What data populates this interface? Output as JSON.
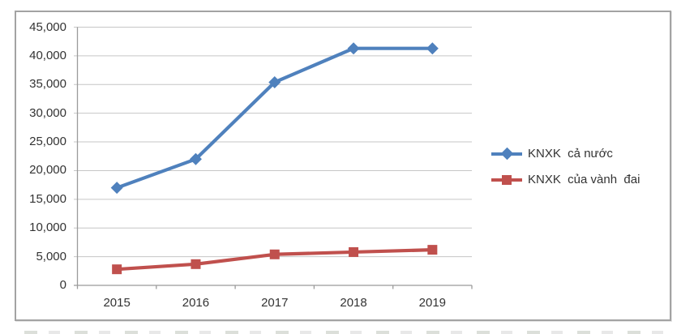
{
  "chart_data": {
    "type": "line",
    "categories": [
      "2015",
      "2016",
      "2017",
      "2018",
      "2019"
    ],
    "series": [
      {
        "name": "KNXK  cả nước",
        "color": "#4f81bd",
        "marker": "diamond",
        "values": [
          17000,
          22000,
          35400,
          41300,
          41300
        ]
      },
      {
        "name": "KNXK  của vành  đai",
        "color": "#c0504d",
        "marker": "square",
        "values": [
          2800,
          3700,
          5400,
          5800,
          6200
        ]
      }
    ],
    "ylim": [
      0,
      45000
    ],
    "ytick_step": 5000,
    "ytick_labels": [
      "0",
      "5,000",
      "10,000",
      "15,000",
      "20,000",
      "25,000",
      "30,000",
      "35,000",
      "40,000",
      "45,000"
    ],
    "grid": true,
    "legend_position": "right"
  },
  "colors": {
    "gridline": "#c6c6c6",
    "axis": "#9b9b9b",
    "text": "#333333",
    "frame_border": "#a3a3a3",
    "background": "#ffffff"
  }
}
